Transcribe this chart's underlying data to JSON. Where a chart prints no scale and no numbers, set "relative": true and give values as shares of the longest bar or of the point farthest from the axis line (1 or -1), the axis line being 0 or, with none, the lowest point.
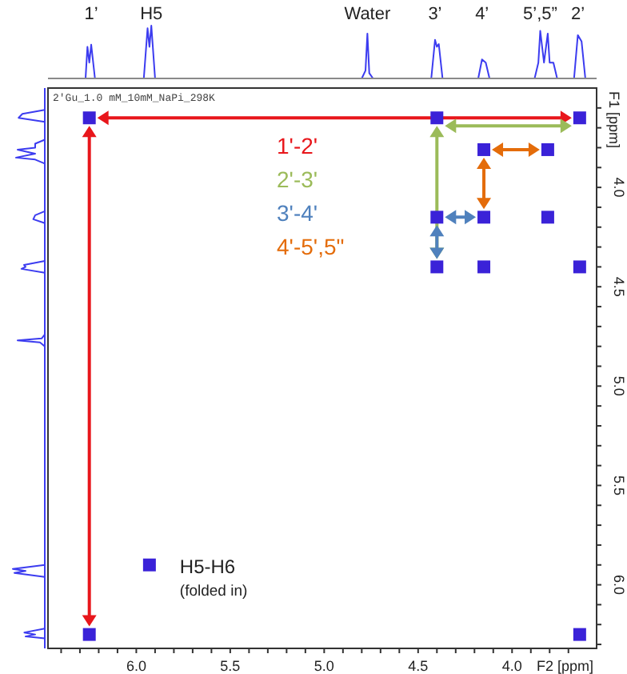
{
  "chart_data": [
    {
      "type": "line",
      "relative": true,
      "tick_labels": false,
      "xlim": [
        6.47,
        3.55
      ],
      "series": [
        {
          "color": "#3c3cf0",
          "x": [
            6.47,
            6.27,
            6.26,
            6.25,
            6.24,
            6.22,
            5.96,
            5.94,
            5.93,
            5.92,
            5.9,
            4.8,
            4.78,
            4.77,
            4.76,
            4.74,
            4.43,
            4.41,
            4.4,
            4.39,
            4.37,
            4.18,
            4.16,
            4.14,
            4.12,
            3.88,
            3.86,
            3.85,
            3.83,
            3.81,
            3.8,
            3.78,
            3.76,
            3.67,
            3.65,
            3.63,
            3.61,
            3.55
          ],
          "values": [
            0,
            0,
            0.6,
            0.3,
            0.64,
            0,
            0,
            0.95,
            0.6,
            1,
            0,
            0,
            0.15,
            0.85,
            0.1,
            0,
            0,
            0.73,
            0.6,
            0.65,
            0,
            0,
            0.36,
            0.3,
            0,
            0,
            0.3,
            0.9,
            0.3,
            0.85,
            0.3,
            0.3,
            0,
            0,
            0.82,
            0.7,
            0,
            0
          ]
        }
      ],
      "annotations": [
        {
          "text": "1’",
          "x": 6.24,
          "y": 0.64
        },
        {
          "text": "H5",
          "x": 5.92,
          "y": 1
        },
        {
          "text": "Water",
          "x": 4.77,
          "y": 0.85
        },
        {
          "text": "3’",
          "x": 4.41,
          "y": 0.73
        },
        {
          "text": "4’",
          "x": 4.16,
          "y": 0.36
        },
        {
          "text": "5’,5”",
          "x": 3.85,
          "y": 0.9
        },
        {
          "text": "2’",
          "x": 3.65,
          "y": 0.82
        }
      ]
    },
    {
      "type": "scatter",
      "xlabel": "F2 [ppm]",
      "ylabel": "F1 [ppm]",
      "xlim": [
        6.47,
        3.55
      ],
      "ylim": [
        6.32,
        3.5
      ],
      "marker": "square",
      "xticks": [
        {
          "value": 6.4,
          "label": null
        },
        {
          "value": 6.3,
          "label": null
        },
        {
          "value": 6.2,
          "label": null
        },
        {
          "value": 6.1,
          "label": null
        },
        {
          "value": 6.0,
          "label": "6.0"
        },
        {
          "value": 5.9,
          "label": null
        },
        {
          "value": 5.8,
          "label": null
        },
        {
          "value": 5.7,
          "label": null
        },
        {
          "value": 5.6,
          "label": null
        },
        {
          "value": 5.5,
          "label": "5.5"
        },
        {
          "value": 5.4,
          "label": null
        },
        {
          "value": 5.3,
          "label": null
        },
        {
          "value": 5.2,
          "label": null
        },
        {
          "value": 5.1,
          "label": null
        },
        {
          "value": 5.0,
          "label": "5.0"
        },
        {
          "value": 4.9,
          "label": null
        },
        {
          "value": 4.8,
          "label": null
        },
        {
          "value": 4.7,
          "label": null
        },
        {
          "value": 4.6,
          "label": null
        },
        {
          "value": 4.5,
          "label": "4.5"
        },
        {
          "value": 4.4,
          "label": null
        },
        {
          "value": 4.3,
          "label": null
        },
        {
          "value": 4.2,
          "label": null
        },
        {
          "value": 4.1,
          "label": null
        },
        {
          "value": 4.0,
          "label": "4.0"
        },
        {
          "value": 3.9,
          "label": null
        },
        {
          "value": 3.8,
          "label": null
        },
        {
          "value": 3.7,
          "label": null
        }
      ],
      "yticks": [
        {
          "value": 3.6,
          "label": null
        },
        {
          "value": 3.7,
          "label": null
        },
        {
          "value": 3.8,
          "label": null
        },
        {
          "value": 3.9,
          "label": null
        },
        {
          "value": 4.0,
          "label": "4.0"
        },
        {
          "value": 4.1,
          "label": null
        },
        {
          "value": 4.2,
          "label": null
        },
        {
          "value": 4.3,
          "label": null
        },
        {
          "value": 4.4,
          "label": null
        },
        {
          "value": 4.5,
          "label": "4.5"
        },
        {
          "value": 4.6,
          "label": null
        },
        {
          "value": 4.7,
          "label": null
        },
        {
          "value": 4.8,
          "label": null
        },
        {
          "value": 4.9,
          "label": null
        },
        {
          "value": 5.0,
          "label": "5.0"
        },
        {
          "value": 5.1,
          "label": null
        },
        {
          "value": 5.2,
          "label": null
        },
        {
          "value": 5.3,
          "label": null
        },
        {
          "value": 5.4,
          "label": null
        },
        {
          "value": 5.5,
          "label": "5.5"
        },
        {
          "value": 5.6,
          "label": null
        },
        {
          "value": 5.7,
          "label": null
        },
        {
          "value": 5.8,
          "label": null
        },
        {
          "value": 5.9,
          "label": null
        },
        {
          "value": 6.0,
          "label": "6.0"
        },
        {
          "value": 6.1,
          "label": null
        },
        {
          "value": 6.2,
          "label": null
        },
        {
          "value": 6.3,
          "label": null
        }
      ],
      "series": [
        {
          "color": "#3a22d8",
          "x": [
            6.25,
            6.25,
            3.64,
            3.64,
            4.4,
            4.4,
            3.64,
            4.4,
            4.15,
            4.15,
            4.15,
            3.81,
            3.81,
            5.93
          ],
          "values": [
            6.25,
            3.65,
            3.65,
            6.25,
            4.4,
            3.65,
            4.4,
            4.15,
            4.15,
            4.4,
            3.81,
            3.81,
            4.15,
            5.9
          ]
        }
      ],
      "annotations": [
        "2'Gu_1.0 mM_10mM_NaPi_298K",
        {
          "text": "H5-H6",
          "x": 5.93,
          "y": 5.9
        },
        "(folded in)",
        "1'-2'",
        "2'-3'",
        "3'-4'",
        "4'-5',5\""
      ]
    }
  ]
}
